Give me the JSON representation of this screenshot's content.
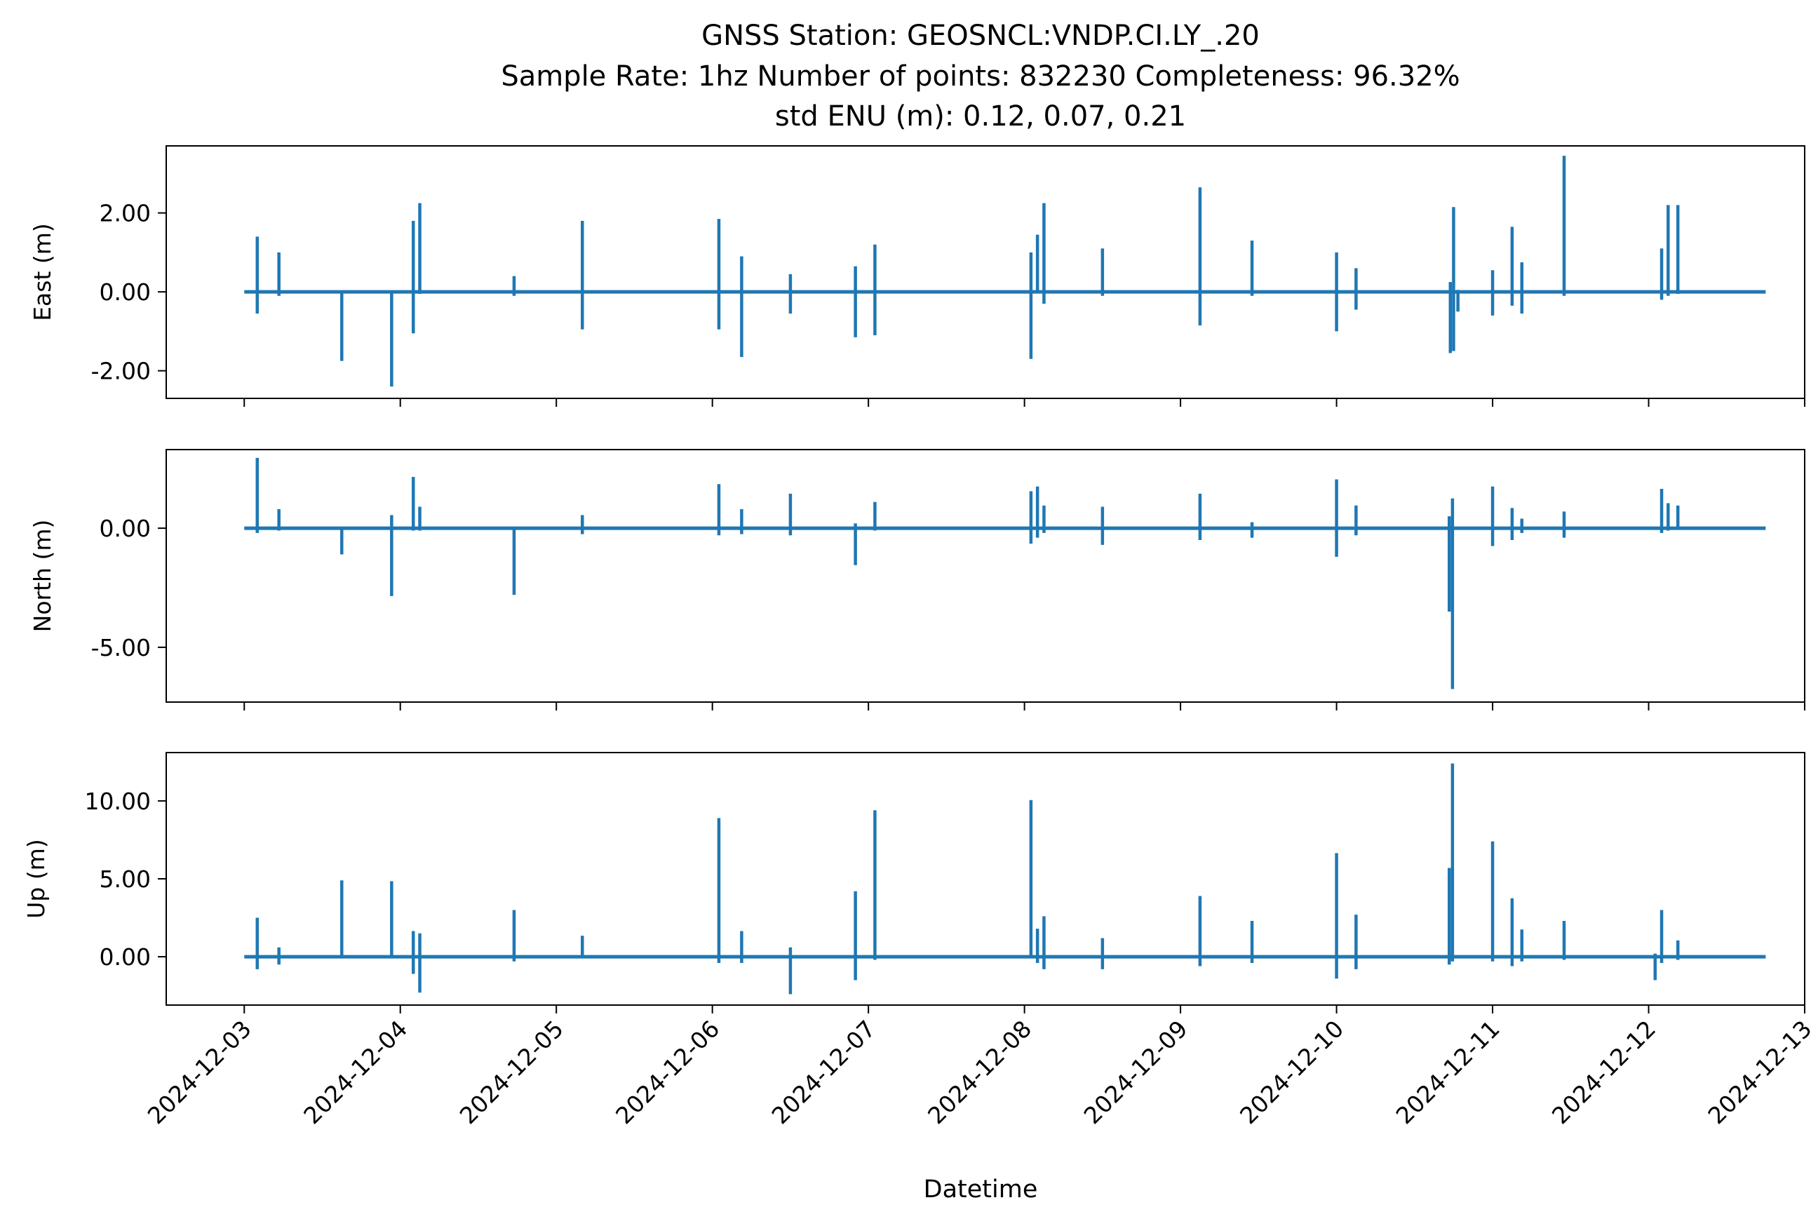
{
  "chart_data": {
    "type": "line",
    "title_lines": [
      "GNSS Station: GEOSNCL:VNDP.CI.LY_.20",
      "Sample Rate: 1hz   Number of points: 832230    Completeness:  96.32%",
      "std ENU (m):  0.12, 0.07, 0.21"
    ],
    "xlabel": "Datetime",
    "x_range": [
      "2024-12-02T12:00",
      "2024-12-13T00:00"
    ],
    "x_start": "2024-12-03T00:00",
    "x_end": "2024-12-12T18:00",
    "x_ticks": [
      "2024-12-03",
      "2024-12-04",
      "2024-12-05",
      "2024-12-06",
      "2024-12-07",
      "2024-12-08",
      "2024-12-09",
      "2024-12-10",
      "2024-12-11",
      "2024-12-12",
      "2024-12-13"
    ],
    "line_color": "#1f77b4",
    "series": [
      {
        "ylabel": "East (m)",
        "ylim": [
          -2.7,
          3.7
        ],
        "yticks": [
          -2,
          0,
          2
        ],
        "ytick_labels": [
          "-2.00",
          "0.00",
          "2.00"
        ],
        "spikes": [
          {
            "t": "2024-12-03T02:00",
            "min": -0.55,
            "max": 1.4
          },
          {
            "t": "2024-12-03T05:20",
            "min": -0.1,
            "max": 1.0
          },
          {
            "t": "2024-12-03T15:00",
            "min": -1.75,
            "max": 0.02
          },
          {
            "t": "2024-12-03T22:40",
            "min": -2.4,
            "max": 0.02
          },
          {
            "t": "2024-12-04T02:00",
            "min": -1.05,
            "max": 1.8
          },
          {
            "t": "2024-12-04T03:00",
            "min": -0.05,
            "max": 2.25
          },
          {
            "t": "2024-12-04T17:30",
            "min": -0.1,
            "max": 0.4
          },
          {
            "t": "2024-12-05T04:00",
            "min": -0.95,
            "max": 1.8
          },
          {
            "t": "2024-12-06T01:00",
            "min": -0.95,
            "max": 1.85
          },
          {
            "t": "2024-12-06T04:30",
            "min": -1.65,
            "max": 0.9
          },
          {
            "t": "2024-12-06T12:00",
            "min": -0.55,
            "max": 0.45
          },
          {
            "t": "2024-12-06T22:00",
            "min": -1.15,
            "max": 0.65
          },
          {
            "t": "2024-12-07T01:00",
            "min": -1.1,
            "max": 1.2
          },
          {
            "t": "2024-12-08T01:00",
            "min": -1.7,
            "max": 1.0
          },
          {
            "t": "2024-12-08T02:00",
            "min": 0.0,
            "max": 1.45
          },
          {
            "t": "2024-12-08T03:00",
            "min": -0.3,
            "max": 2.25
          },
          {
            "t": "2024-12-08T12:00",
            "min": -0.1,
            "max": 1.1
          },
          {
            "t": "2024-12-09T03:00",
            "min": -0.85,
            "max": 2.65
          },
          {
            "t": "2024-12-09T11:00",
            "min": -0.1,
            "max": 1.3
          },
          {
            "t": "2024-12-10T00:00",
            "min": -1.0,
            "max": 1.0
          },
          {
            "t": "2024-12-10T03:00",
            "min": -0.45,
            "max": 0.6
          },
          {
            "t": "2024-12-10T17:30",
            "min": -1.55,
            "max": 0.25
          },
          {
            "t": "2024-12-10T18:00",
            "min": -1.5,
            "max": 2.15
          },
          {
            "t": "2024-12-10T18:40",
            "min": -0.5,
            "max": 0.05
          },
          {
            "t": "2024-12-11T00:00",
            "min": -0.6,
            "max": 0.55
          },
          {
            "t": "2024-12-11T03:00",
            "min": -0.35,
            "max": 1.65
          },
          {
            "t": "2024-12-11T04:30",
            "min": -0.55,
            "max": 0.75
          },
          {
            "t": "2024-12-11T11:00",
            "min": -0.1,
            "max": 3.45
          },
          {
            "t": "2024-12-12T02:00",
            "min": -0.2,
            "max": 1.1
          },
          {
            "t": "2024-12-12T03:00",
            "min": -0.1,
            "max": 2.2
          },
          {
            "t": "2024-12-12T04:30",
            "min": -0.05,
            "max": 2.2
          }
        ]
      },
      {
        "ylabel": "North (m)",
        "ylim": [
          -7.3,
          3.3
        ],
        "yticks": [
          -5,
          0
        ],
        "ytick_labels": [
          "-5.00",
          "0.00"
        ],
        "spikes": [
          {
            "t": "2024-12-03T02:00",
            "min": -0.2,
            "max": 2.95
          },
          {
            "t": "2024-12-03T05:20",
            "min": -0.1,
            "max": 0.8
          },
          {
            "t": "2024-12-03T15:00",
            "min": -1.1,
            "max": 0.02
          },
          {
            "t": "2024-12-03T22:40",
            "min": -2.85,
            "max": 0.55
          },
          {
            "t": "2024-12-04T02:00",
            "min": -0.1,
            "max": 2.15
          },
          {
            "t": "2024-12-04T03:00",
            "min": -0.1,
            "max": 0.9
          },
          {
            "t": "2024-12-04T17:30",
            "min": -2.8,
            "max": 0.02
          },
          {
            "t": "2024-12-05T04:00",
            "min": -0.25,
            "max": 0.55
          },
          {
            "t": "2024-12-06T01:00",
            "min": -0.3,
            "max": 1.85
          },
          {
            "t": "2024-12-06T04:30",
            "min": -0.25,
            "max": 0.8
          },
          {
            "t": "2024-12-06T12:00",
            "min": -0.3,
            "max": 1.45
          },
          {
            "t": "2024-12-06T22:00",
            "min": -1.55,
            "max": 0.2
          },
          {
            "t": "2024-12-07T01:00",
            "min": -0.1,
            "max": 1.1
          },
          {
            "t": "2024-12-08T01:00",
            "min": -0.65,
            "max": 1.55
          },
          {
            "t": "2024-12-08T02:00",
            "min": -0.4,
            "max": 1.75
          },
          {
            "t": "2024-12-08T03:00",
            "min": -0.2,
            "max": 0.95
          },
          {
            "t": "2024-12-08T12:00",
            "min": -0.7,
            "max": 0.9
          },
          {
            "t": "2024-12-09T03:00",
            "min": -0.5,
            "max": 1.45
          },
          {
            "t": "2024-12-09T11:00",
            "min": -0.4,
            "max": 0.25
          },
          {
            "t": "2024-12-10T00:00",
            "min": -1.2,
            "max": 2.05
          },
          {
            "t": "2024-12-10T03:00",
            "min": -0.3,
            "max": 0.95
          },
          {
            "t": "2024-12-10T17:20",
            "min": -3.5,
            "max": 0.5
          },
          {
            "t": "2024-12-10T17:50",
            "min": -6.75,
            "max": 1.25
          },
          {
            "t": "2024-12-11T00:00",
            "min": -0.75,
            "max": 1.75
          },
          {
            "t": "2024-12-11T03:00",
            "min": -0.5,
            "max": 0.85
          },
          {
            "t": "2024-12-11T04:30",
            "min": -0.2,
            "max": 0.4
          },
          {
            "t": "2024-12-11T11:00",
            "min": -0.4,
            "max": 0.7
          },
          {
            "t": "2024-12-12T02:00",
            "min": -0.2,
            "max": 1.65
          },
          {
            "t": "2024-12-12T03:00",
            "min": -0.1,
            "max": 1.05
          },
          {
            "t": "2024-12-12T04:30",
            "min": -0.05,
            "max": 0.95
          }
        ]
      },
      {
        "ylabel": "Up (m)",
        "ylim": [
          -3.1,
          13.1
        ],
        "yticks": [
          0,
          5,
          10
        ],
        "ytick_labels": [
          "0.00",
          "5.00",
          "10.00"
        ],
        "spikes": [
          {
            "t": "2024-12-03T02:00",
            "min": -0.8,
            "max": 2.5
          },
          {
            "t": "2024-12-03T05:20",
            "min": -0.5,
            "max": 0.6
          },
          {
            "t": "2024-12-03T15:00",
            "min": 0.0,
            "max": 4.9
          },
          {
            "t": "2024-12-03T22:40",
            "min": 0.0,
            "max": 4.85
          },
          {
            "t": "2024-12-04T02:00",
            "min": -1.1,
            "max": 1.65
          },
          {
            "t": "2024-12-04T03:00",
            "min": -2.3,
            "max": 1.5
          },
          {
            "t": "2024-12-04T17:30",
            "min": -0.3,
            "max": 3.0
          },
          {
            "t": "2024-12-05T04:00",
            "min": -0.1,
            "max": 1.35
          },
          {
            "t": "2024-12-06T01:00",
            "min": -0.4,
            "max": 8.9
          },
          {
            "t": "2024-12-06T04:30",
            "min": -0.4,
            "max": 1.65
          },
          {
            "t": "2024-12-06T12:00",
            "min": -2.4,
            "max": 0.6
          },
          {
            "t": "2024-12-06T22:00",
            "min": -1.5,
            "max": 4.2
          },
          {
            "t": "2024-12-07T01:00",
            "min": -0.2,
            "max": 9.4
          },
          {
            "t": "2024-12-08T01:00",
            "min": 0.0,
            "max": 10.05
          },
          {
            "t": "2024-12-08T02:00",
            "min": -0.4,
            "max": 1.8
          },
          {
            "t": "2024-12-08T03:00",
            "min": -0.8,
            "max": 2.6
          },
          {
            "t": "2024-12-08T12:00",
            "min": -0.8,
            "max": 1.2
          },
          {
            "t": "2024-12-09T03:00",
            "min": -0.6,
            "max": 3.9
          },
          {
            "t": "2024-12-09T11:00",
            "min": -0.4,
            "max": 2.3
          },
          {
            "t": "2024-12-10T00:00",
            "min": -1.4,
            "max": 6.65
          },
          {
            "t": "2024-12-10T03:00",
            "min": -0.8,
            "max": 2.7
          },
          {
            "t": "2024-12-10T17:20",
            "min": -0.5,
            "max": 5.7
          },
          {
            "t": "2024-12-10T17:50",
            "min": -0.3,
            "max": 12.4
          },
          {
            "t": "2024-12-11T00:00",
            "min": -0.3,
            "max": 7.4
          },
          {
            "t": "2024-12-11T03:00",
            "min": -0.6,
            "max": 3.75
          },
          {
            "t": "2024-12-11T04:30",
            "min": -0.3,
            "max": 1.75
          },
          {
            "t": "2024-12-11T11:00",
            "min": -0.2,
            "max": 2.3
          },
          {
            "t": "2024-12-12T01:00",
            "min": -1.5,
            "max": 0.2
          },
          {
            "t": "2024-12-12T02:00",
            "min": -0.4,
            "max": 3.0
          },
          {
            "t": "2024-12-12T04:30",
            "min": -0.2,
            "max": 1.05
          }
        ]
      }
    ]
  }
}
